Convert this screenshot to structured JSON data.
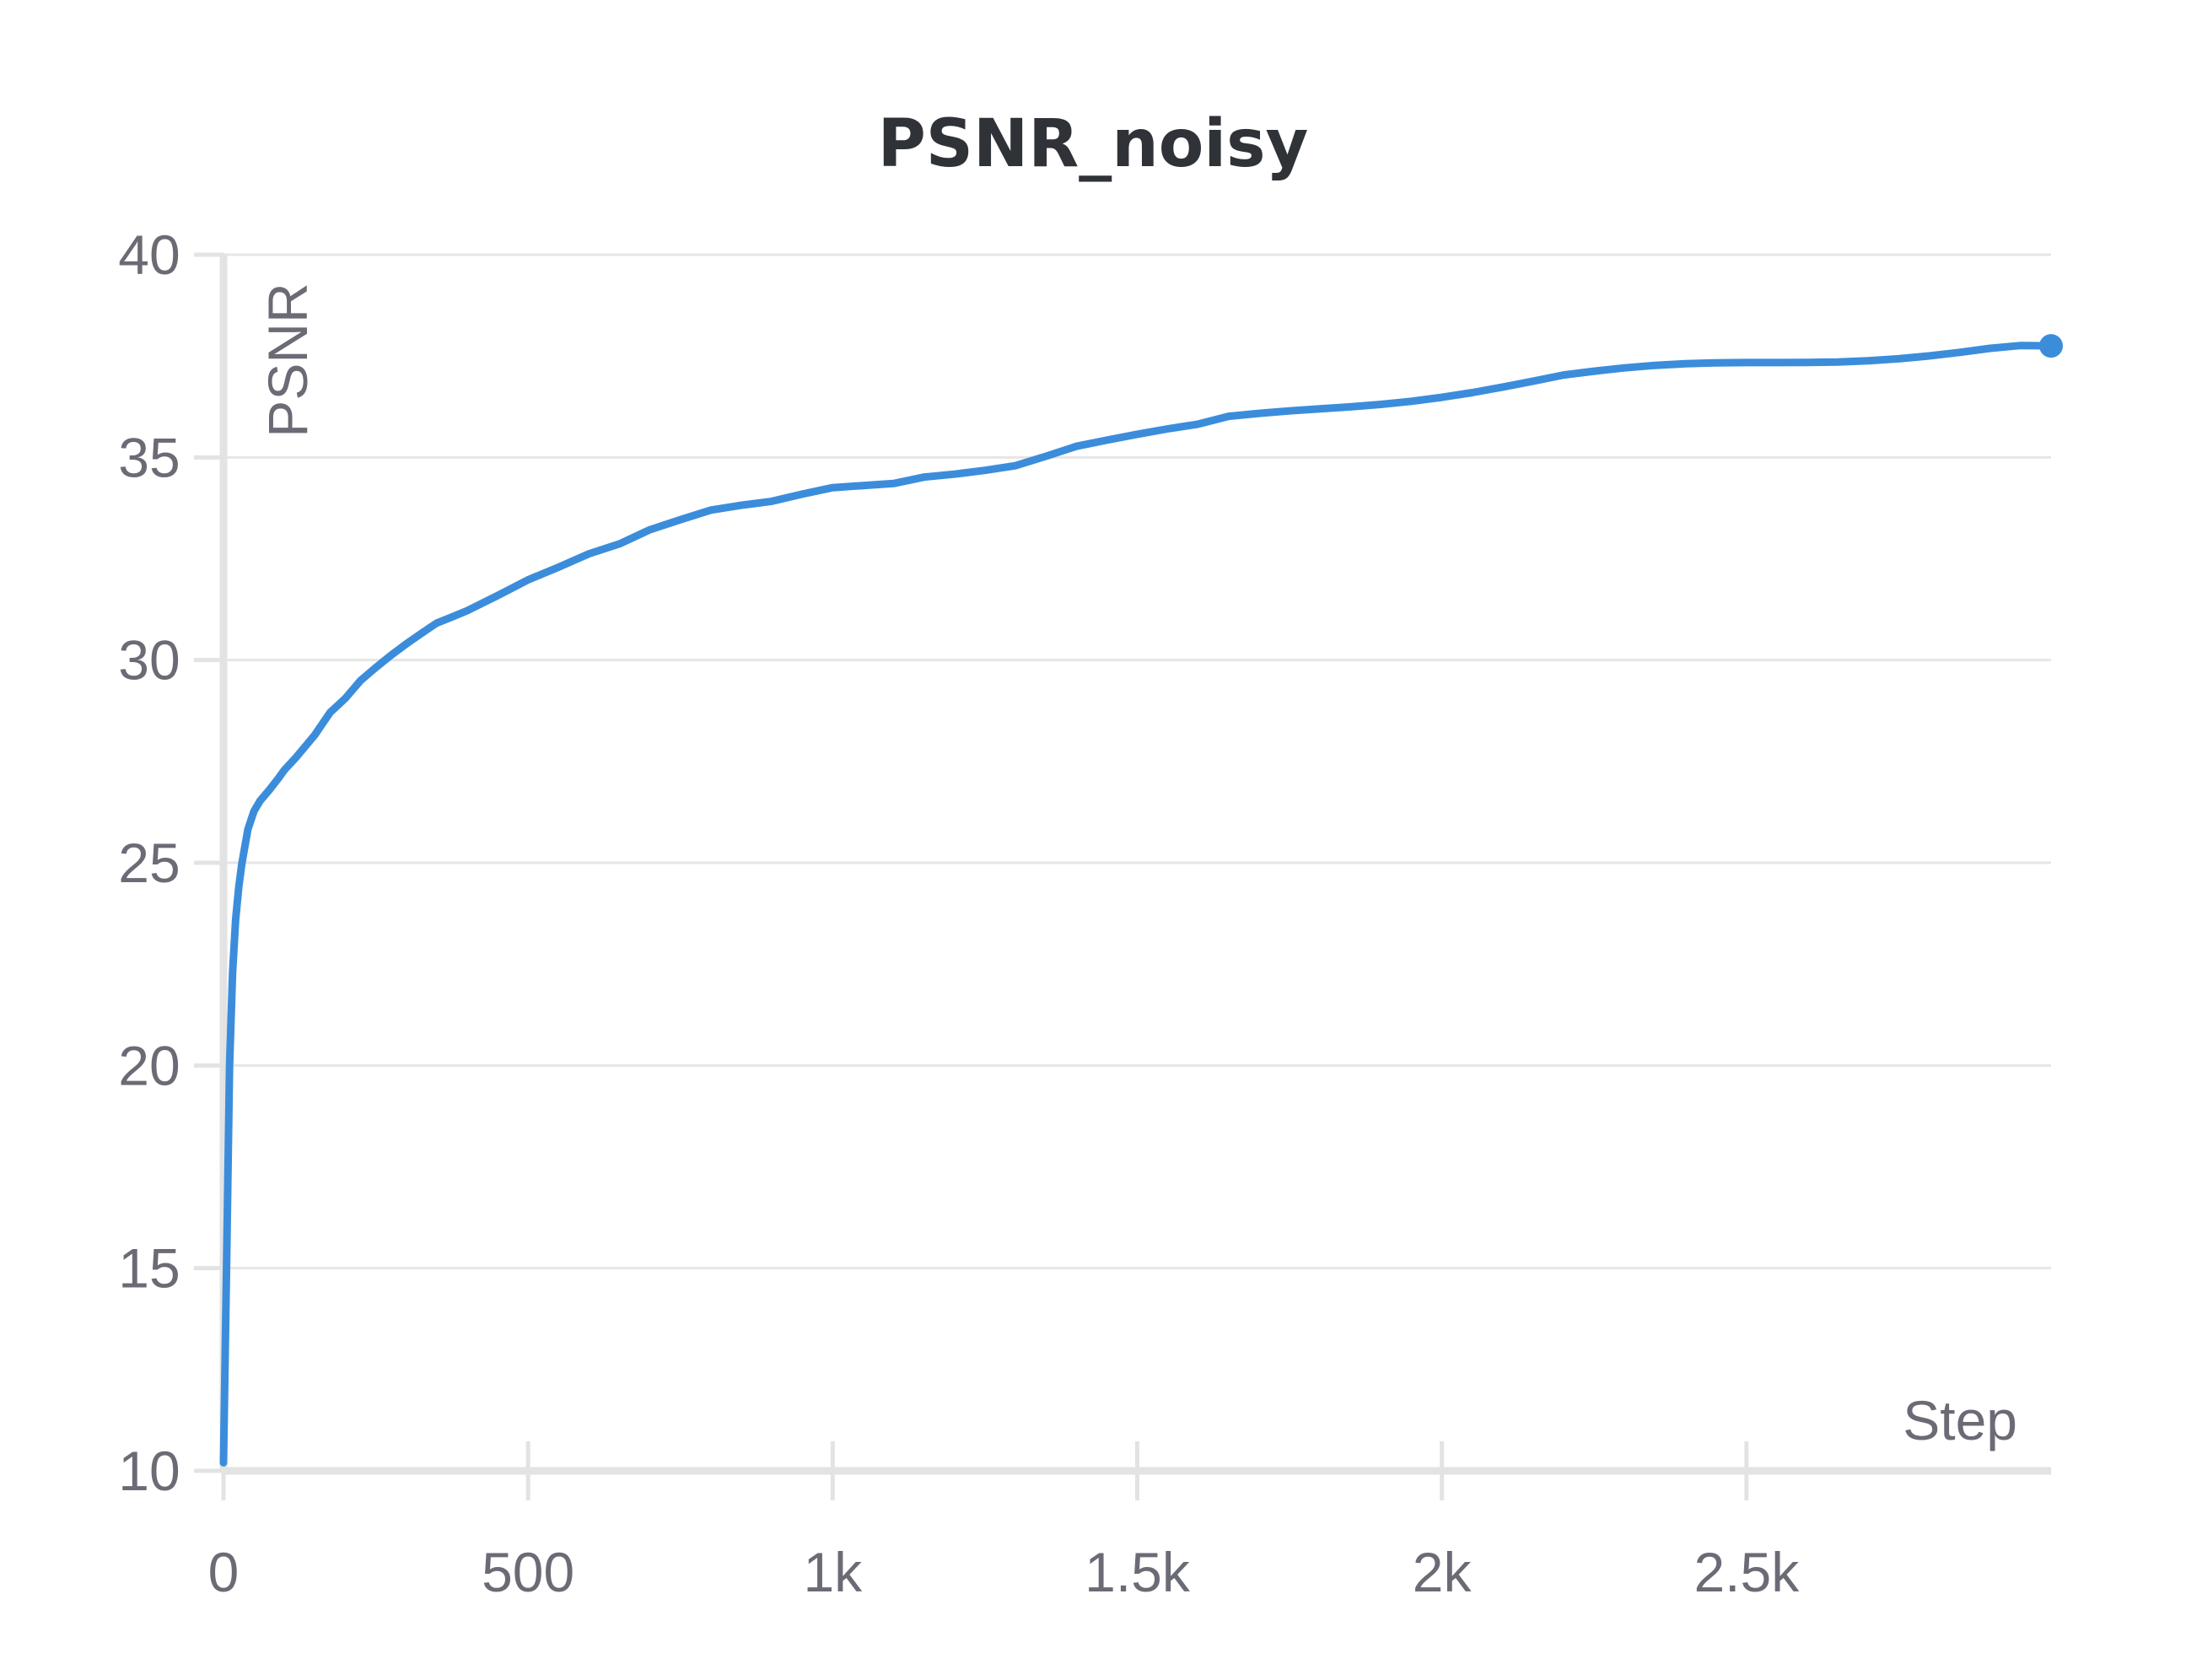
{
  "chart_data": {
    "type": "line",
    "title": "PSNR_noisy",
    "xlabel": "Step",
    "ylabel": "PSNR",
    "xlim": [
      0,
      3000
    ],
    "ylim": [
      10,
      40
    ],
    "x_ticks": [
      {
        "value": 0,
        "label": "0"
      },
      {
        "value": 500,
        "label": "500"
      },
      {
        "value": 1000,
        "label": "1k"
      },
      {
        "value": 1500,
        "label": "1.5k"
      },
      {
        "value": 2000,
        "label": "2k"
      },
      {
        "value": 2500,
        "label": "2.5k"
      }
    ],
    "y_ticks": [
      {
        "value": 10,
        "label": "10"
      },
      {
        "value": 15,
        "label": "15"
      },
      {
        "value": 20,
        "label": "20"
      },
      {
        "value": 25,
        "label": "25"
      },
      {
        "value": 30,
        "label": "30"
      },
      {
        "value": 35,
        "label": "35"
      },
      {
        "value": 40,
        "label": "40"
      }
    ],
    "grid": true,
    "line_color": "#3b8ddb",
    "series": [
      {
        "x": [
          0,
          5,
          10,
          15,
          20,
          25,
          30,
          40,
          50,
          60,
          75,
          90,
          100,
          120,
          150,
          175,
          200,
          225,
          250,
          275,
          300,
          325,
          350,
          375,
          400,
          450,
          500,
          550,
          600,
          650,
          700,
          750,
          800,
          850,
          900,
          950,
          1000,
          1050,
          1100,
          1150,
          1200,
          1250,
          1300,
          1350,
          1400,
          1450,
          1500,
          1550,
          1600,
          1650,
          1700,
          1750,
          1800,
          1850,
          1900,
          1950,
          2000,
          2050,
          2100,
          2150,
          2200,
          2250,
          2300,
          2350,
          2400,
          2450,
          2500,
          2550,
          2600,
          2650,
          2700,
          2750,
          2800,
          2850,
          2900,
          2950,
          3000
        ],
        "y": [
          10.2,
          15.0,
          20.0,
          22.3,
          23.6,
          24.4,
          24.9,
          25.8,
          26.3,
          26.6,
          26.9,
          27.2,
          27.4,
          27.7,
          28.2,
          28.7,
          29.0,
          29.4,
          29.7,
          30.0,
          30.3,
          30.6,
          30.9,
          31.1,
          31.3,
          31.7,
          32.1,
          32.4,
          32.7,
          32.9,
          33.2,
          33.4,
          33.6,
          33.7,
          33.8,
          34.0,
          34.2,
          34.3,
          34.4,
          34.6,
          34.7,
          34.8,
          34.9,
          35.1,
          35.3,
          35.4,
          35.5,
          35.6,
          35.7,
          35.9,
          36.0,
          36.1,
          36.2,
          36.3,
          36.4,
          36.5,
          36.6,
          36.7,
          36.8,
          36.9,
          37.0,
          37.05,
          37.1,
          37.15,
          37.2,
          37.25,
          37.3,
          37.35,
          37.4,
          37.45,
          37.5,
          37.55,
          37.6,
          37.65,
          37.7,
          37.72,
          37.75
        ]
      }
    ]
  }
}
